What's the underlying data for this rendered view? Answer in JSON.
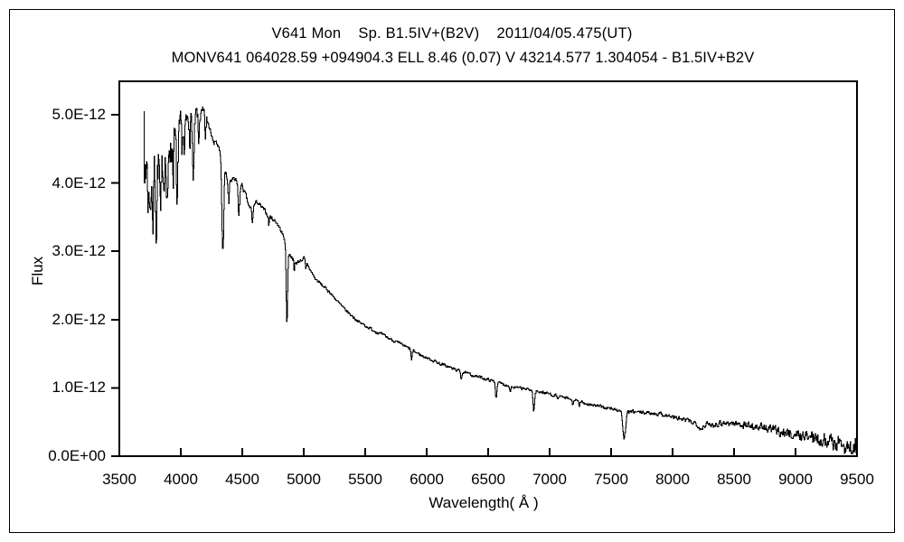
{
  "header": {
    "title": "V641 Mon    Sp. B1.5IV+(B2V)    2011/04/05.475(UT)",
    "subtitle": "MONV641 064028.59 +094904.3 ELL 8.46 (0.07) V 43214.577 1.304054 - B1.5IV+B2V"
  },
  "chart_data": {
    "type": "line",
    "title": "V641 Mon Sp. B1.5IV+(B2V) 2011/04/05.475(UT)",
    "xlabel": "Wavelength( Å )",
    "ylabel": "Flux",
    "xlim": [
      3500,
      9500
    ],
    "x_ticks": [
      3500,
      4000,
      4500,
      5000,
      5500,
      6000,
      6500,
      7000,
      7500,
      8000,
      8500,
      9000,
      9500
    ],
    "y_axis_max_e12": 5.49,
    "y_ticks": [
      {
        "value_e12": 0,
        "label": "0.0E+00"
      },
      {
        "value_e12": 1,
        "label": "1.0E-12"
      },
      {
        "value_e12": 2,
        "label": "2.0E-12"
      },
      {
        "value_e12": 3,
        "label": "3.0E-12"
      },
      {
        "value_e12": 4,
        "label": "4.0E-12"
      },
      {
        "value_e12": 5,
        "label": "5.0E-12"
      }
    ],
    "grid": false,
    "legend": false,
    "line_color": "#000000",
    "background_color": "#ffffff",
    "spectrum": {
      "x_start": 3700,
      "x_end": 9500,
      "step_angstrom": 4,
      "first_point_flux_e12": 5.05,
      "continuum_e12": [
        [
          3700,
          4.45
        ],
        [
          3760,
          4.22
        ],
        [
          3820,
          4.28
        ],
        [
          3880,
          4.42
        ],
        [
          3920,
          4.68
        ],
        [
          3960,
          4.55
        ],
        [
          4000,
          4.78
        ],
        [
          4060,
          4.92
        ],
        [
          4120,
          5.0
        ],
        [
          4180,
          5.0
        ],
        [
          4230,
          4.85
        ],
        [
          4285,
          4.62
        ],
        [
          4330,
          4.35
        ],
        [
          4380,
          4.05
        ],
        [
          4440,
          4.03
        ],
        [
          4500,
          3.95
        ],
        [
          4560,
          3.62
        ],
        [
          4620,
          3.72
        ],
        [
          4700,
          3.55
        ],
        [
          4780,
          3.42
        ],
        [
          4840,
          3.2
        ],
        [
          4880,
          2.96
        ],
        [
          4940,
          2.83
        ],
        [
          5000,
          2.9
        ],
        [
          5090,
          2.6
        ],
        [
          5200,
          2.42
        ],
        [
          5320,
          2.17
        ],
        [
          5450,
          1.96
        ],
        [
          5570,
          1.84
        ],
        [
          5700,
          1.72
        ],
        [
          5820,
          1.61
        ],
        [
          5950,
          1.48
        ],
        [
          6100,
          1.36
        ],
        [
          6260,
          1.25
        ],
        [
          6400,
          1.17
        ],
        [
          6560,
          1.09
        ],
        [
          6700,
          1.01
        ],
        [
          6860,
          0.97
        ],
        [
          7000,
          0.91
        ],
        [
          7150,
          0.84
        ],
        [
          7300,
          0.77
        ],
        [
          7450,
          0.71
        ],
        [
          7600,
          0.66
        ],
        [
          7750,
          0.64
        ],
        [
          7900,
          0.62
        ],
        [
          8050,
          0.55
        ],
        [
          8200,
          0.48
        ],
        [
          8300,
          0.46
        ],
        [
          8420,
          0.49
        ],
        [
          8550,
          0.47
        ],
        [
          8700,
          0.43
        ],
        [
          8850,
          0.37
        ],
        [
          9000,
          0.31
        ],
        [
          9150,
          0.28
        ],
        [
          9300,
          0.21
        ],
        [
          9400,
          0.16
        ],
        [
          9500,
          0.1
        ]
      ],
      "absorption_lines_center_depth_width": [
        [
          3712,
          0.5,
          5
        ],
        [
          3734,
          0.8,
          6
        ],
        [
          3750,
          0.75,
          6
        ],
        [
          3771,
          0.85,
          7
        ],
        [
          3798,
          0.9,
          7
        ],
        [
          3835,
          0.95,
          8
        ],
        [
          3860,
          0.35,
          5
        ],
        [
          3889,
          0.9,
          8
        ],
        [
          3920,
          0.3,
          5
        ],
        [
          3934,
          0.5,
          5
        ],
        [
          3970,
          0.95,
          8
        ],
        [
          4009,
          0.3,
          5
        ],
        [
          4026,
          0.5,
          6
        ],
        [
          4070,
          0.3,
          5
        ],
        [
          4101,
          1.0,
          9
        ],
        [
          4144,
          0.45,
          6
        ],
        [
          4200,
          0.3,
          5
        ],
        [
          4267,
          0.2,
          4
        ],
        [
          4340,
          1.22,
          10
        ],
        [
          4388,
          0.35,
          6
        ],
        [
          4471,
          0.5,
          7
        ],
        [
          4580,
          0.25,
          7
        ],
        [
          4713,
          0.15,
          5
        ],
        [
          4861,
          1.12,
          9
        ],
        [
          4922,
          0.18,
          5
        ],
        [
          5016,
          0.12,
          5
        ],
        [
          5876,
          0.16,
          6
        ],
        [
          6280,
          0.1,
          7
        ],
        [
          6563,
          0.22,
          7
        ],
        [
          6678,
          0.08,
          5
        ],
        [
          6870,
          0.3,
          10
        ],
        [
          7065,
          0.05,
          5
        ],
        [
          7186,
          0.07,
          7
        ],
        [
          7240,
          0.06,
          7
        ],
        [
          7605,
          0.4,
          16
        ],
        [
          8230,
          0.07,
          22
        ]
      ],
      "noise": {
        "seed": 7,
        "persistence": 0.45,
        "amplitude_profile_e12": [
          [
            3700,
            0.3
          ],
          [
            3950,
            0.26
          ],
          [
            4050,
            0.12
          ],
          [
            4300,
            0.05
          ],
          [
            4600,
            0.03
          ],
          [
            5000,
            0.02
          ],
          [
            6000,
            0.018
          ],
          [
            7000,
            0.018
          ],
          [
            7800,
            0.022
          ],
          [
            8300,
            0.035
          ],
          [
            8700,
            0.05
          ],
          [
            9000,
            0.065
          ],
          [
            9250,
            0.09
          ],
          [
            9500,
            0.13
          ]
        ]
      }
    }
  }
}
